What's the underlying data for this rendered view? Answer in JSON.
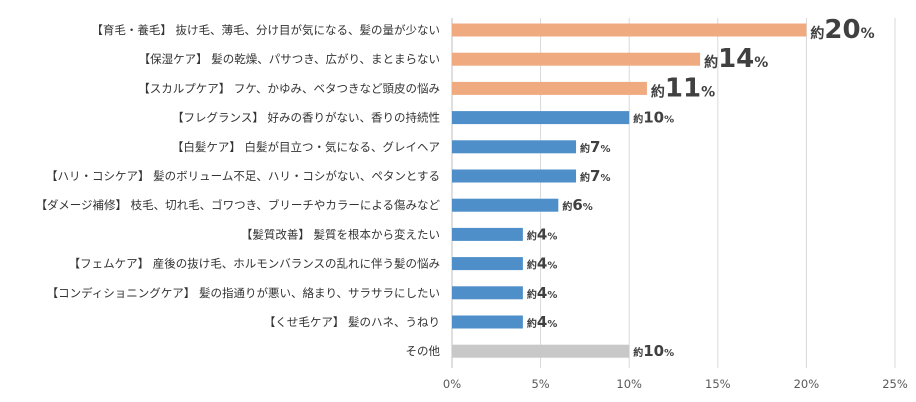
{
  "chart_data": {
    "type": "bar",
    "orientation": "horizontal",
    "title": "",
    "xlabel": "",
    "ylabel": "",
    "xlim": [
      0,
      25
    ],
    "x_ticks": [
      "0%",
      "5%",
      "10%",
      "15%",
      "20%",
      "25%"
    ],
    "grid": true,
    "legend": "none",
    "categories": [
      "【育毛・養毛】 抜け毛、薄毛、分け目が気になる、髪の量が少ない",
      "【保湿ケア】 髪の乾燥、パサつき、広がり、まとまらない",
      "【スカルプケア】 フケ、かゆみ、ベタつきなど頭皮の悩み",
      "【フレグランス】 好みの香りがない、香りの持続性",
      "【白髪ケア】 白髪が目立つ・気になる、グレイヘア",
      "【ハリ・コシケア】 髪のボリューム不足、ハリ・コシがない、ペタンとする",
      "【ダメージ補修】 枝毛、切れ毛、ゴワつき、ブリーチやカラーによる傷みなど",
      "【髪質改善】 髪質を根本から変えたい",
      "【フェムケア】 産後の抜け毛、ホルモンバランスの乱れに伴う髪の悩み",
      "【コンディショニングケア】 髪の指通りが悪い、絡まり、サラサラにしたい",
      "【くせ毛ケア】 髪のハネ、うねり",
      "その他"
    ],
    "values": [
      20,
      14,
      11,
      10,
      7,
      7,
      6,
      4,
      4,
      4,
      4,
      10
    ],
    "data_labels": {
      "prefix": "約",
      "numbers": [
        "20",
        "14",
        "11",
        "10",
        "7",
        "7",
        "6",
        "4",
        "4",
        "4",
        "4",
        "10"
      ],
      "suffix": "%"
    },
    "bar_colors": [
      "#f0aa80",
      "#f0aa80",
      "#f0aa80",
      "#4e8fca",
      "#4e8fca",
      "#4e8fca",
      "#4e8fca",
      "#4e8fca",
      "#4e8fca",
      "#4e8fca",
      "#4e8fca",
      "#c8c8c8"
    ],
    "highlight_top3": true
  }
}
